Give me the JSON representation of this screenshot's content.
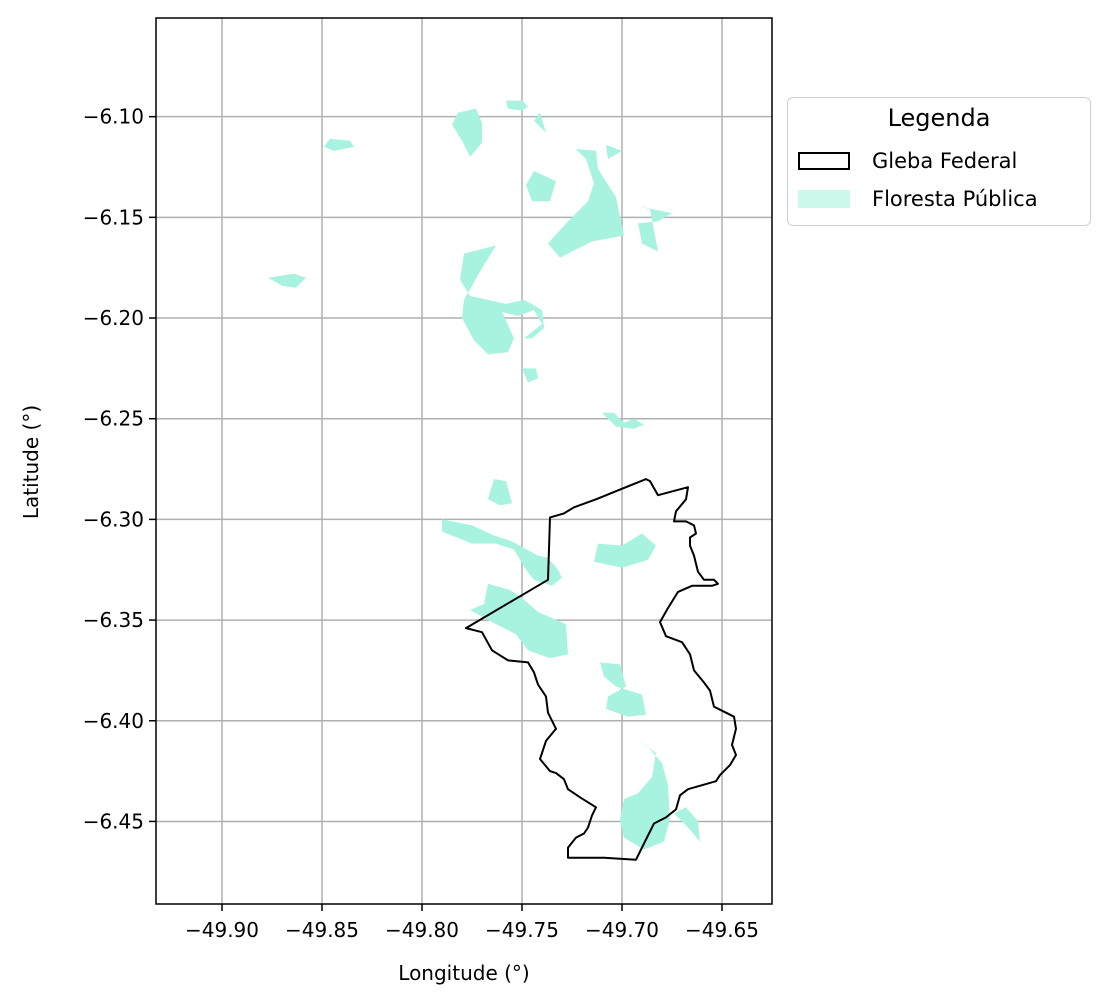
{
  "chart_data": {
    "type": "map",
    "xlabel": "Longitude (°)",
    "ylabel": "Latitude (°)",
    "xlim": [
      -49.933,
      -49.625
    ],
    "ylim": [
      -6.491,
      -6.051
    ],
    "x_ticks": [
      -49.9,
      -49.85,
      -49.8,
      -49.75,
      -49.7,
      -49.65
    ],
    "x_tick_labels": [
      "−49.90",
      "−49.85",
      "−49.80",
      "−49.75",
      "−49.70",
      "−49.65"
    ],
    "y_ticks": [
      -6.1,
      -6.15,
      -6.2,
      -6.25,
      -6.3,
      -6.35,
      -6.4,
      -6.45
    ],
    "y_tick_labels": [
      "−6.10",
      "−6.15",
      "−6.20",
      "−6.25",
      "−6.30",
      "−6.35",
      "−6.40",
      "−6.45"
    ],
    "grid": true,
    "legend": {
      "title": "Legenda",
      "placement": "outside-upper-right",
      "entries": [
        {
          "label": "Gleba Federal",
          "style": "outline",
          "color": "#000000"
        },
        {
          "label": "Floresta Pública",
          "style": "fill",
          "color": "#a8f2e0"
        }
      ]
    },
    "layers": [
      {
        "name": "Gleba Federal",
        "color": "#000000",
        "polygon": [
          [
            -49.778,
            -6.354
          ],
          [
            -49.737,
            -6.33
          ],
          [
            -49.736,
            -6.299
          ],
          [
            -49.729,
            -6.297
          ],
          [
            -49.724,
            -6.294
          ],
          [
            -49.713,
            -6.29
          ],
          [
            -49.703,
            -6.286
          ],
          [
            -49.688,
            -6.28
          ],
          [
            -49.686,
            -6.281
          ],
          [
            -49.682,
            -6.288
          ],
          [
            -49.667,
            -6.284
          ],
          [
            -49.668,
            -6.29
          ],
          [
            -49.673,
            -6.296
          ],
          [
            -49.674,
            -6.301
          ],
          [
            -49.668,
            -6.301
          ],
          [
            -49.664,
            -6.303
          ],
          [
            -49.663,
            -6.307
          ],
          [
            -49.666,
            -6.309
          ],
          [
            -49.666,
            -6.313
          ],
          [
            -49.664,
            -6.318
          ],
          [
            -49.663,
            -6.322
          ],
          [
            -49.662,
            -6.326
          ],
          [
            -49.659,
            -6.33
          ],
          [
            -49.654,
            -6.33
          ],
          [
            -49.652,
            -6.332
          ],
          [
            -49.655,
            -6.333
          ],
          [
            -49.665,
            -6.333
          ],
          [
            -49.672,
            -6.336
          ],
          [
            -49.677,
            -6.344
          ],
          [
            -49.681,
            -6.351
          ],
          [
            -49.678,
            -6.358
          ],
          [
            -49.67,
            -6.361
          ],
          [
            -49.666,
            -6.367
          ],
          [
            -49.664,
            -6.375
          ],
          [
            -49.659,
            -6.381
          ],
          [
            -49.656,
            -6.385
          ],
          [
            -49.654,
            -6.393
          ],
          [
            -49.648,
            -6.396
          ],
          [
            -49.644,
            -6.398
          ],
          [
            -49.643,
            -6.404
          ],
          [
            -49.645,
            -6.412
          ],
          [
            -49.643,
            -6.417
          ],
          [
            -49.646,
            -6.422
          ],
          [
            -49.651,
            -6.427
          ],
          [
            -49.653,
            -6.43
          ],
          [
            -49.66,
            -6.432
          ],
          [
            -49.667,
            -6.434
          ],
          [
            -49.671,
            -6.437
          ],
          [
            -49.673,
            -6.444
          ],
          [
            -49.678,
            -6.448
          ],
          [
            -49.684,
            -6.451
          ],
          [
            -49.687,
            -6.457
          ],
          [
            -49.69,
            -6.463
          ],
          [
            -49.693,
            -6.469
          ],
          [
            -49.709,
            -6.468
          ],
          [
            -49.727,
            -6.468
          ],
          [
            -49.727,
            -6.463
          ],
          [
            -49.723,
            -6.458
          ],
          [
            -49.719,
            -6.456
          ],
          [
            -49.717,
            -6.453
          ],
          [
            -49.715,
            -6.447
          ],
          [
            -49.713,
            -6.443
          ],
          [
            -49.721,
            -6.438
          ],
          [
            -49.727,
            -6.434
          ],
          [
            -49.729,
            -6.429
          ],
          [
            -49.733,
            -6.426
          ],
          [
            -49.736,
            -6.425
          ],
          [
            -49.741,
            -6.419
          ],
          [
            -49.738,
            -6.41
          ],
          [
            -49.733,
            -6.404
          ],
          [
            -49.737,
            -6.396
          ],
          [
            -49.738,
            -6.388
          ],
          [
            -49.742,
            -6.382
          ],
          [
            -49.744,
            -6.376
          ],
          [
            -49.747,
            -6.371
          ],
          [
            -49.757,
            -6.37
          ],
          [
            -49.765,
            -6.365
          ],
          [
            -49.77,
            -6.356
          ],
          [
            -49.778,
            -6.354
          ]
        ]
      },
      {
        "name": "Floresta Pública",
        "color": "#a8f2e0",
        "polygons": [
          [
            [
              -49.782,
              -6.098
            ],
            [
              -49.773,
              -6.096
            ],
            [
              -49.77,
              -6.103
            ],
            [
              -49.77,
              -6.113
            ],
            [
              -49.776,
              -6.12
            ],
            [
              -49.78,
              -6.112
            ],
            [
              -49.785,
              -6.104
            ]
          ],
          [
            [
              -49.846,
              -6.111
            ],
            [
              -49.836,
              -6.112
            ],
            [
              -49.834,
              -6.115
            ],
            [
              -49.844,
              -6.117
            ],
            [
              -49.849,
              -6.115
            ]
          ],
          [
            [
              -49.758,
              -6.092
            ],
            [
              -49.75,
              -6.092
            ],
            [
              -49.747,
              -6.095
            ],
            [
              -49.75,
              -6.097
            ],
            [
              -49.757,
              -6.096
            ]
          ],
          [
            [
              -49.744,
              -6.102
            ],
            [
              -49.741,
              -6.098
            ],
            [
              -49.738,
              -6.108
            ]
          ],
          [
            [
              -49.723,
              -6.116
            ],
            [
              -49.713,
              -6.117
            ],
            [
              -49.712,
              -6.126
            ],
            [
              -49.703,
              -6.14
            ],
            [
              -49.699,
              -6.159
            ],
            [
              -49.715,
              -6.162
            ],
            [
              -49.731,
              -6.17
            ],
            [
              -49.737,
              -6.163
            ],
            [
              -49.728,
              -6.153
            ],
            [
              -49.717,
              -6.142
            ],
            [
              -49.714,
              -6.133
            ],
            [
              -49.718,
              -6.121
            ]
          ],
          [
            [
              -49.744,
              -6.127
            ],
            [
              -49.733,
              -6.132
            ],
            [
              -49.736,
              -6.142
            ],
            [
              -49.745,
              -6.142
            ],
            [
              -49.748,
              -6.134
            ]
          ],
          [
            [
              -49.694,
              -6.144
            ],
            [
              -49.686,
              -6.146
            ],
            [
              -49.682,
              -6.167
            ],
            [
              -49.69,
              -6.163
            ],
            [
              -49.692,
              -6.153
            ],
            [
              -49.682,
              -6.152
            ],
            [
              -49.675,
              -6.148
            ]
          ],
          [
            [
              -49.708,
              -6.114
            ],
            [
              -49.7,
              -6.117
            ],
            [
              -49.707,
              -6.121
            ]
          ],
          [
            [
              -49.779,
              -6.168
            ],
            [
              -49.763,
              -6.164
            ],
            [
              -49.771,
              -6.177
            ],
            [
              -49.779,
              -6.191
            ],
            [
              -49.78,
              -6.2
            ],
            [
              -49.774,
              -6.211
            ],
            [
              -49.767,
              -6.218
            ],
            [
              -49.757,
              -6.217
            ],
            [
              -49.754,
              -6.21
            ],
            [
              -49.76,
              -6.197
            ],
            [
              -49.752,
              -6.199
            ],
            [
              -49.744,
              -6.196
            ],
            [
              -49.74,
              -6.203
            ],
            [
              -49.749,
              -6.21
            ],
            [
              -49.745,
              -6.21
            ],
            [
              -49.739,
              -6.205
            ],
            [
              -49.74,
              -6.196
            ],
            [
              -49.749,
              -6.191
            ],
            [
              -49.758,
              -6.193
            ],
            [
              -49.776,
              -6.189
            ],
            [
              -49.781,
              -6.181
            ]
          ],
          [
            [
              -49.877,
              -6.18
            ],
            [
              -49.864,
              -6.178
            ],
            [
              -49.858,
              -6.18
            ],
            [
              -49.863,
              -6.185
            ],
            [
              -49.87,
              -6.184
            ]
          ],
          [
            [
              -49.75,
              -6.225
            ],
            [
              -49.743,
              -6.225
            ],
            [
              -49.742,
              -6.23
            ],
            [
              -49.747,
              -6.232
            ]
          ],
          [
            [
              -49.71,
              -6.247
            ],
            [
              -49.704,
              -6.247
            ],
            [
              -49.699,
              -6.252
            ],
            [
              -49.694,
              -6.25
            ],
            [
              -49.689,
              -6.253
            ],
            [
              -49.694,
              -6.255
            ],
            [
              -49.703,
              -6.254
            ],
            [
              -49.707,
              -6.25
            ]
          ],
          [
            [
              -49.764,
              -6.28
            ],
            [
              -49.758,
              -6.281
            ],
            [
              -49.755,
              -6.292
            ],
            [
              -49.761,
              -6.293
            ],
            [
              -49.767,
              -6.29
            ]
          ],
          [
            [
              -49.79,
              -6.3
            ],
            [
              -49.775,
              -6.303
            ],
            [
              -49.764,
              -6.308
            ],
            [
              -49.755,
              -6.311
            ],
            [
              -49.742,
              -6.318
            ],
            [
              -49.737,
              -6.319
            ],
            [
              -49.732,
              -6.325
            ],
            [
              -49.73,
              -6.329
            ],
            [
              -49.735,
              -6.333
            ],
            [
              -49.744,
              -6.33
            ],
            [
              -49.748,
              -6.325
            ],
            [
              -49.754,
              -6.315
            ],
            [
              -49.763,
              -6.312
            ],
            [
              -49.775,
              -6.312
            ],
            [
              -49.79,
              -6.306
            ]
          ],
          [
            [
              -49.712,
              -6.312
            ],
            [
              -49.7,
              -6.313
            ],
            [
              -49.69,
              -6.307
            ],
            [
              -49.683,
              -6.313
            ],
            [
              -49.687,
              -6.32
            ],
            [
              -49.7,
              -6.324
            ],
            [
              -49.714,
              -6.321
            ]
          ],
          [
            [
              -49.767,
              -6.332
            ],
            [
              -49.769,
              -6.342
            ],
            [
              -49.776,
              -6.345
            ],
            [
              -49.765,
              -6.351
            ],
            [
              -49.753,
              -6.357
            ],
            [
              -49.747,
              -6.365
            ],
            [
              -49.736,
              -6.369
            ],
            [
              -49.727,
              -6.367
            ],
            [
              -49.728,
              -6.352
            ],
            [
              -49.742,
              -6.346
            ],
            [
              -49.75,
              -6.339
            ],
            [
              -49.756,
              -6.335
            ]
          ],
          [
            [
              -49.711,
              -6.371
            ],
            [
              -49.701,
              -6.372
            ],
            [
              -49.698,
              -6.383
            ],
            [
              -49.707,
              -6.388
            ],
            [
              -49.708,
              -6.394
            ],
            [
              -49.697,
              -6.398
            ],
            [
              -49.688,
              -6.397
            ],
            [
              -49.69,
              -6.387
            ],
            [
              -49.703,
              -6.383
            ],
            [
              -49.709,
              -6.378
            ]
          ],
          [
            [
              -49.693,
              -6.409
            ],
            [
              -49.683,
              -6.416
            ],
            [
              -49.685,
              -6.428
            ],
            [
              -49.692,
              -6.436
            ],
            [
              -49.699,
              -6.439
            ],
            [
              -49.701,
              -6.449
            ],
            [
              -49.699,
              -6.458
            ],
            [
              -49.689,
              -6.464
            ],
            [
              -49.679,
              -6.46
            ],
            [
              -49.676,
              -6.449
            ],
            [
              -49.677,
              -6.432
            ],
            [
              -49.68,
              -6.421
            ],
            [
              -49.687,
              -6.413
            ]
          ],
          [
            [
              -49.674,
              -6.446
            ],
            [
              -49.667,
              -6.453
            ],
            [
              -49.661,
              -6.46
            ],
            [
              -49.662,
              -6.45
            ],
            [
              -49.668,
              -6.443
            ]
          ]
        ]
      }
    ]
  }
}
